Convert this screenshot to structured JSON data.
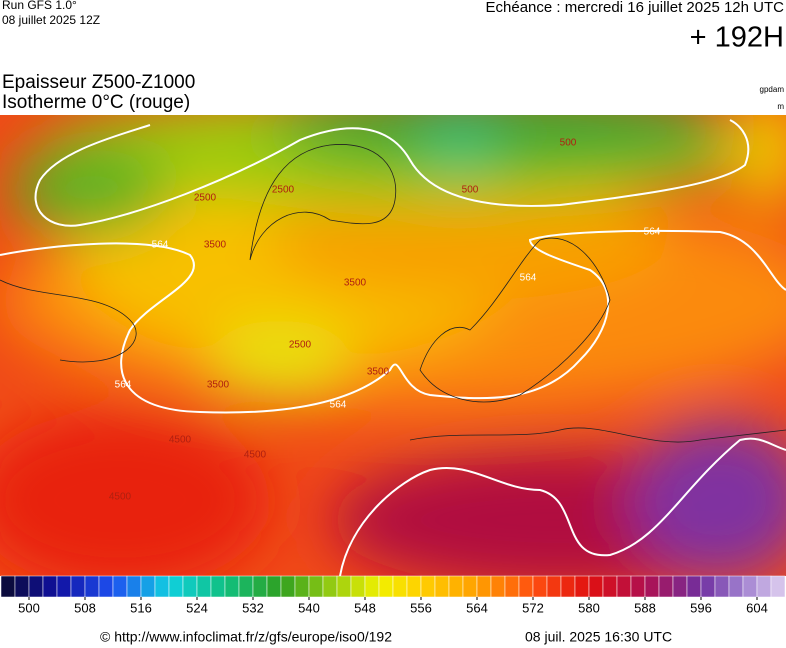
{
  "header": {
    "run": "Run GFS 1.0°",
    "run_date": "08 juillet 2025 12Z",
    "echeance": "Echéance : mercredi 16 juillet 2025 12h UTC",
    "lead": "+ 192H",
    "title1": "Epaisseur Z500-Z1000",
    "title2": "Isotherme 0°C (rouge)",
    "unit1": "gpdam",
    "unit2": "m"
  },
  "map_labels": [
    "564",
    "564",
    "564",
    "564",
    "564",
    "2500",
    "2500",
    "2500",
    "3500",
    "3500",
    "3500",
    "3500",
    "4500",
    "4500",
    "4500",
    "500",
    "500"
  ],
  "colorbar": {
    "min": 496,
    "max": 608,
    "step": 2,
    "stops": [
      {
        "value": 496,
        "color": "#0a0a30"
      },
      {
        "value": 504,
        "color": "#1010a0"
      },
      {
        "value": 512,
        "color": "#1e50f0"
      },
      {
        "value": 520,
        "color": "#10d0e0"
      },
      {
        "value": 528,
        "color": "#10c080"
      },
      {
        "value": 536,
        "color": "#30a020"
      },
      {
        "value": 544,
        "color": "#a0d010"
      },
      {
        "value": 550,
        "color": "#f0f000"
      },
      {
        "value": 556,
        "color": "#ffd000"
      },
      {
        "value": 564,
        "color": "#ffa000"
      },
      {
        "value": 572,
        "color": "#ff5010"
      },
      {
        "value": 580,
        "color": "#e01010"
      },
      {
        "value": 588,
        "color": "#b01050"
      },
      {
        "value": 596,
        "color": "#7030a0"
      },
      {
        "value": 602,
        "color": "#a080d0"
      },
      {
        "value": 608,
        "color": "#e0d0f0"
      }
    ],
    "ticks": [
      500,
      508,
      516,
      524,
      532,
      540,
      548,
      556,
      564,
      572,
      580,
      588,
      596,
      604
    ]
  },
  "footer": {
    "url": "© http://www.infoclimat.fr/z/gfs/europe/iso0/192",
    "date": "08 juil. 2025 16:30 UTC"
  }
}
